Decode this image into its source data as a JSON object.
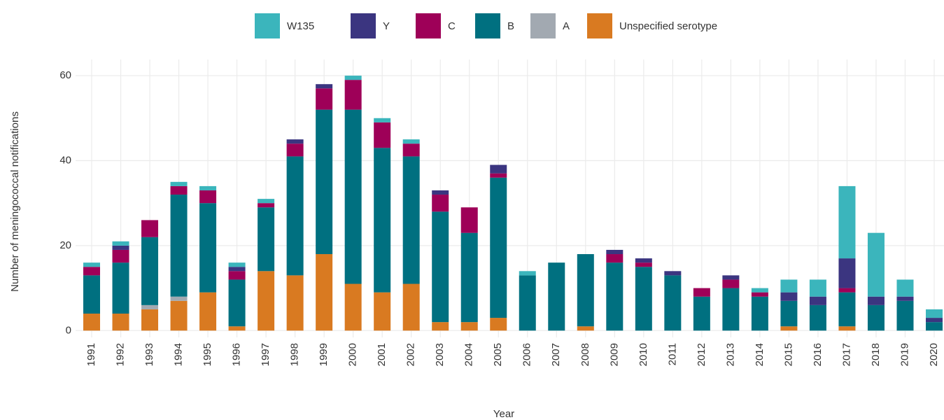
{
  "chart_data": {
    "type": "stacked_bar",
    "x_label": "Year",
    "y_label": "Number of meningococcal notifications",
    "categories": [
      "1991",
      "1992",
      "1993",
      "1994",
      "1995",
      "1996",
      "1997",
      "1998",
      "1999",
      "2000",
      "2001",
      "2002",
      "2003",
      "2004",
      "2005",
      "2006",
      "2007",
      "2008",
      "2009",
      "2010",
      "2011",
      "2012",
      "2013",
      "2014",
      "2015",
      "2016",
      "2017",
      "2018",
      "2019",
      "2020"
    ],
    "series": [
      {
        "name": "W135",
        "color": "#3bb5bc",
        "values": [
          1,
          1,
          0,
          1,
          1,
          1,
          1,
          0,
          0,
          1,
          1,
          1,
          0,
          0,
          0,
          1,
          0,
          0,
          0,
          0,
          0,
          0,
          0,
          1,
          3,
          4,
          17,
          15,
          4,
          2
        ]
      },
      {
        "name": "Y",
        "color": "#3b3580",
        "values": [
          0,
          1,
          0,
          0,
          0,
          1,
          0,
          1,
          1,
          0,
          0,
          0,
          1,
          0,
          2,
          0,
          0,
          0,
          1,
          1,
          1,
          0,
          1,
          0,
          2,
          2,
          7,
          2,
          1,
          1
        ]
      },
      {
        "name": "C",
        "color": "#9e0058",
        "values": [
          2,
          3,
          4,
          2,
          3,
          2,
          1,
          3,
          5,
          7,
          6,
          3,
          4,
          6,
          1,
          0,
          0,
          0,
          2,
          1,
          0,
          2,
          2,
          1,
          0,
          0,
          1,
          0,
          0,
          0
        ]
      },
      {
        "name": "B",
        "color": "#007080",
        "values": [
          9,
          12,
          16,
          24,
          21,
          11,
          15,
          28,
          34,
          41,
          34,
          30,
          26,
          21,
          33,
          13,
          16,
          17,
          16,
          15,
          13,
          8,
          10,
          8,
          6,
          6,
          8,
          6,
          7,
          2
        ]
      },
      {
        "name": "A",
        "color": "#a2a9b1",
        "values": [
          0,
          0,
          1,
          1,
          0,
          0,
          0,
          0,
          0,
          0,
          0,
          0,
          0,
          0,
          0,
          0,
          0,
          0,
          0,
          0,
          0,
          0,
          0,
          0,
          0,
          0,
          0,
          0,
          0,
          0
        ]
      },
      {
        "name": "Unspecified serotype",
        "color": "#d97a21",
        "values": [
          4,
          4,
          5,
          7,
          9,
          1,
          14,
          13,
          18,
          11,
          9,
          11,
          2,
          2,
          3,
          0,
          0,
          1,
          0,
          0,
          0,
          0,
          0,
          0,
          1,
          0,
          1,
          0,
          0,
          0
        ]
      }
    ],
    "ylim": [
      -1.6,
      63.8
    ],
    "yticks": [
      0,
      20,
      40,
      60
    ],
    "grid": true,
    "legend": "top"
  }
}
